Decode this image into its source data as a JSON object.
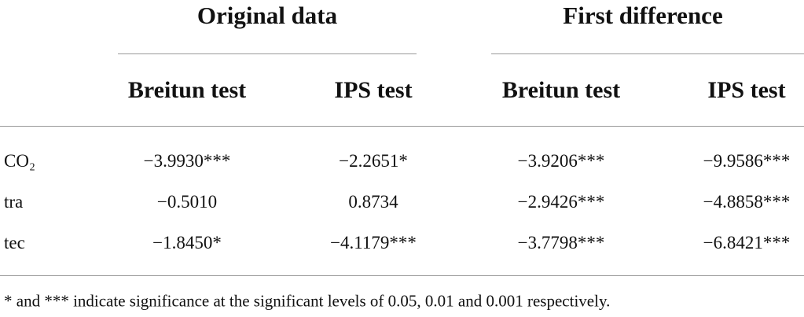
{
  "table": {
    "group_headers": [
      "Original data",
      "First difference"
    ],
    "headers": [
      "Breitun test",
      "IPS test",
      "Breitun test",
      "IPS test"
    ],
    "rows": [
      [
        "CO₂",
        "−3.9930***",
        "−2.2651*",
        "−3.9206***",
        "−9.9586***"
      ],
      [
        "tra",
        "−0.5010",
        "0.8734",
        "−2.9426***",
        "−4.8858***"
      ],
      [
        "tec",
        "−1.8450*",
        "−4.1179***",
        "−3.7798***",
        "−6.8421***"
      ]
    ],
    "footnote": "* and *** indicate significance at the significant levels of 0.05, 0.01 and 0.001 respectively."
  }
}
